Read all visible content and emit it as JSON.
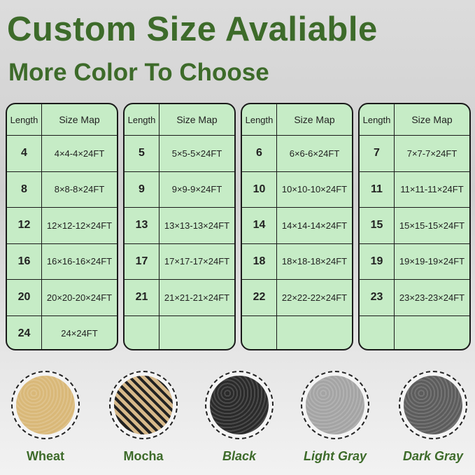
{
  "title": "Custom Size Avaliable",
  "subtitle": "More Color To Choose",
  "table_headers": {
    "length": "Length",
    "size_map": "Size Map"
  },
  "tables": [
    {
      "rows": [
        [
          "4",
          "4×4-4×24FT"
        ],
        [
          "8",
          "8×8-8×24FT"
        ],
        [
          "12",
          "12×12-12×24FT"
        ],
        [
          "16",
          "16×16-16×24FT"
        ],
        [
          "20",
          "20×20-20×24FT"
        ],
        [
          "24",
          "24×24FT"
        ]
      ]
    },
    {
      "rows": [
        [
          "5",
          "5×5-5×24FT"
        ],
        [
          "9",
          "9×9-9×24FT"
        ],
        [
          "13",
          "13×13-13×24FT"
        ],
        [
          "17",
          "17×17-17×24FT"
        ],
        [
          "21",
          "21×21-21×24FT"
        ],
        [
          "",
          ""
        ]
      ]
    },
    {
      "rows": [
        [
          "6",
          "6×6-6×24FT"
        ],
        [
          "10",
          "10×10-10×24FT"
        ],
        [
          "14",
          "14×14-14×24FT"
        ],
        [
          "18",
          "18×18-18×24FT"
        ],
        [
          "22",
          "22×22-22×24FT"
        ],
        [
          "",
          ""
        ]
      ]
    },
    {
      "rows": [
        [
          "7",
          "7×7-7×24FT"
        ],
        [
          "11",
          "11×11-11×24FT"
        ],
        [
          "15",
          "15×15-15×24FT"
        ],
        [
          "19",
          "19×19-19×24FT"
        ],
        [
          "23",
          "23×23-23×24FT"
        ],
        [
          "",
          ""
        ]
      ]
    }
  ],
  "colors": [
    {
      "name": "Wheat",
      "swatch": "#d9b878",
      "italic": false
    },
    {
      "name": "Mocha",
      "swatch": "#8a7350",
      "italic": false
    },
    {
      "name": "Black",
      "swatch": "#2a2a2a",
      "italic": true
    },
    {
      "name": "Light Gray",
      "swatch": "#a4a4a4",
      "italic": true
    },
    {
      "name": "Dark Gray",
      "swatch": "#5c5c5c",
      "italic": true
    }
  ],
  "accent": "#3d6b2a"
}
